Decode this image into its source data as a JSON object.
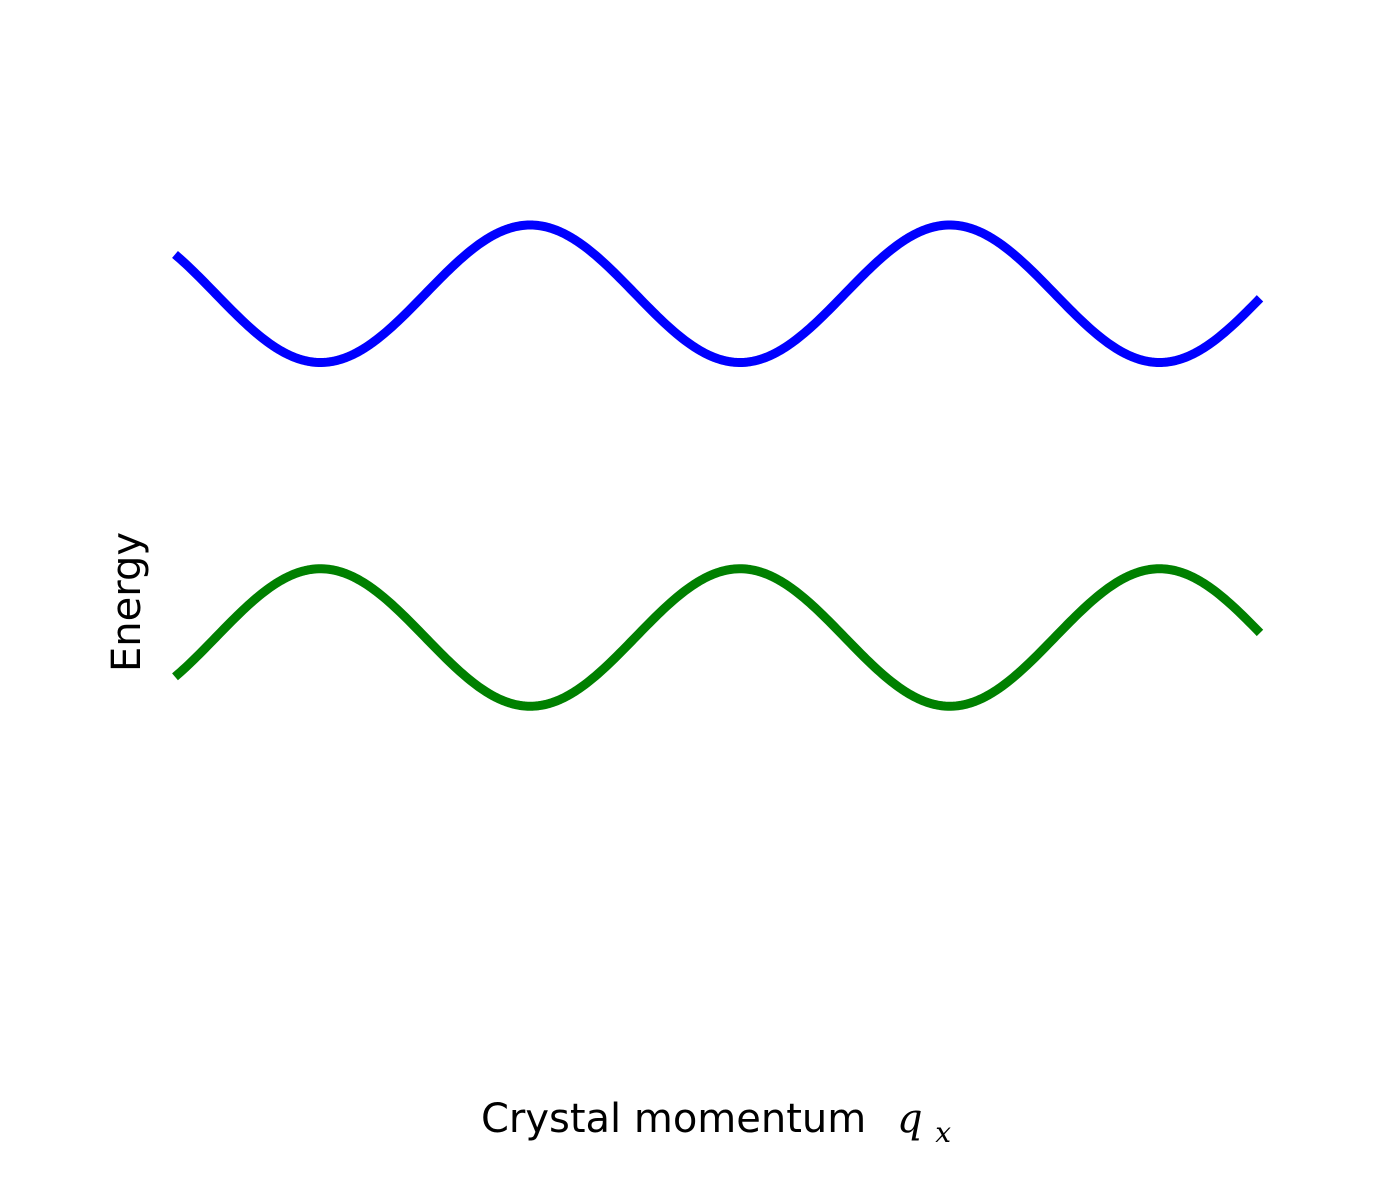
{
  "chart_data": {
    "type": "line",
    "title": "",
    "xlabel_main": "Crystal momentum",
    "xlabel_symbol": "q",
    "xlabel_subscript": "x",
    "ylabel": "Energy",
    "xlim": [
      -3.0,
      10.0
    ],
    "ylim": [
      -5.5,
      1.7
    ],
    "axes_visible": false,
    "grid": false,
    "x_samples": 400,
    "series": [
      {
        "color": "#0000ff",
        "linewidth": 9,
        "formula": "y = 0.5 * sin(1.25 * x)",
        "offset": 0.0,
        "amplitude": 0.5,
        "frequency": 1.25,
        "phase": 0.0
      },
      {
        "color": "#008000",
        "linewidth": 9,
        "formula": "y = -2.5 - 0.5 * sin(1.25 * x)",
        "offset": -2.5,
        "amplitude": -0.5,
        "frequency": 1.25,
        "phase": 0.0
      }
    ]
  }
}
